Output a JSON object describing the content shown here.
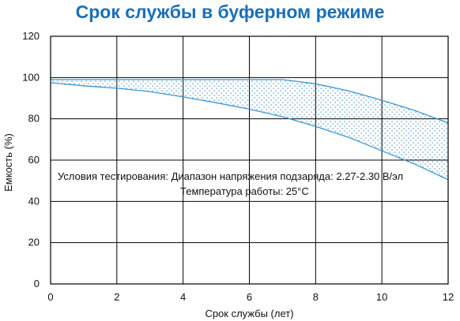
{
  "chart_data": {
    "type": "area",
    "title": "Срок службы в буферном режиме",
    "xlabel": "Срок службы (лет)",
    "ylabel": "Емкость (%)",
    "xlim": [
      0,
      12
    ],
    "ylim": [
      0,
      120
    ],
    "xticks": [
      "0",
      "2",
      "4",
      "6",
      "8",
      "10",
      "12"
    ],
    "yticks": [
      "0",
      "20",
      "40",
      "60",
      "80",
      "100",
      "120"
    ],
    "grid": true,
    "band": {
      "upper": {
        "x": [
          0,
          2,
          4,
          6,
          7,
          8,
          9,
          10,
          11,
          12
        ],
        "y": [
          99,
          99,
          99,
          99,
          99,
          97,
          93.5,
          89,
          84,
          78
        ]
      },
      "lower": {
        "x": [
          0,
          1,
          2,
          3,
          4,
          5,
          6,
          7,
          8,
          9,
          10,
          11,
          12
        ],
        "y": [
          97.5,
          96,
          94.8,
          93.2,
          90.6,
          87.8,
          84.7,
          81,
          76.3,
          71,
          64.5,
          58,
          50.5
        ]
      }
    },
    "annotation": {
      "line1": "Условия тестирования: Диапазон напряжения подзаряда: 2.27-2.30 В/эл",
      "line2": "Температура работы: 25°C"
    },
    "colors": {
      "title": "#1b6fb5",
      "curve": "#3a96d2",
      "dots": "#2a7fbf",
      "grid": "#000000"
    }
  }
}
